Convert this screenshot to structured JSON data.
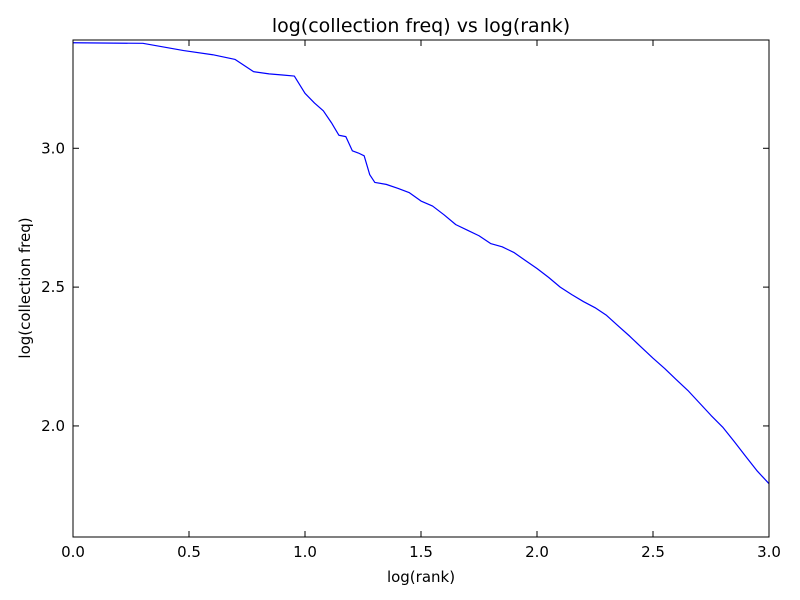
{
  "chart_data": {
    "type": "line",
    "title": "log(collection freq) vs log(rank)",
    "xlabel": "log(rank)",
    "ylabel": "log(collection freq)",
    "xlim": [
      0.0,
      3.0
    ],
    "ylim": [
      1.6,
      3.39
    ],
    "grid": false,
    "legend": "none",
    "colors": {
      "line": "#0000ff",
      "axes": "#000000",
      "background": "#ffffff"
    },
    "xticks": [
      {
        "value": 0.0,
        "label": "0.0"
      },
      {
        "value": 0.5,
        "label": "0.5"
      },
      {
        "value": 1.0,
        "label": "1.0"
      },
      {
        "value": 1.5,
        "label": "1.5"
      },
      {
        "value": 2.0,
        "label": "2.0"
      },
      {
        "value": 2.5,
        "label": "2.5"
      },
      {
        "value": 3.0,
        "label": "3.0"
      }
    ],
    "yticks": [
      {
        "value": 2.0,
        "label": "2.0"
      },
      {
        "value": 2.5,
        "label": "2.5"
      },
      {
        "value": 3.0,
        "label": "3.0"
      }
    ],
    "series": [
      {
        "x": [
          0.0,
          0.301,
          0.477,
          0.602,
          0.699,
          0.778,
          0.845,
          0.903,
          0.954,
          1.0,
          1.041,
          1.079,
          1.114,
          1.146,
          1.176,
          1.204,
          1.23,
          1.255,
          1.279,
          1.301,
          1.35,
          1.4,
          1.45,
          1.5,
          1.55,
          1.6,
          1.65,
          1.7,
          1.75,
          1.8,
          1.85,
          1.9,
          1.95,
          2.0,
          2.05,
          2.1,
          2.15,
          2.2,
          2.25,
          2.3,
          2.35,
          2.4,
          2.45,
          2.5,
          2.55,
          2.6,
          2.65,
          2.7,
          2.75,
          2.8,
          2.85,
          2.9,
          2.95,
          3.0
        ],
        "y": [
          3.38,
          3.378,
          3.352,
          3.337,
          3.32,
          3.276,
          3.268,
          3.264,
          3.26,
          3.198,
          3.163,
          3.135,
          3.092,
          3.047,
          3.042,
          2.991,
          2.983,
          2.973,
          2.905,
          2.877,
          2.87,
          2.856,
          2.84,
          2.81,
          2.792,
          2.76,
          2.725,
          2.705,
          2.685,
          2.657,
          2.645,
          2.625,
          2.596,
          2.567,
          2.535,
          2.5,
          2.473,
          2.448,
          2.426,
          2.398,
          2.36,
          2.323,
          2.283,
          2.244,
          2.207,
          2.167,
          2.128,
          2.083,
          2.038,
          1.996,
          1.944,
          1.89,
          1.837,
          1.792
        ]
      }
    ]
  }
}
